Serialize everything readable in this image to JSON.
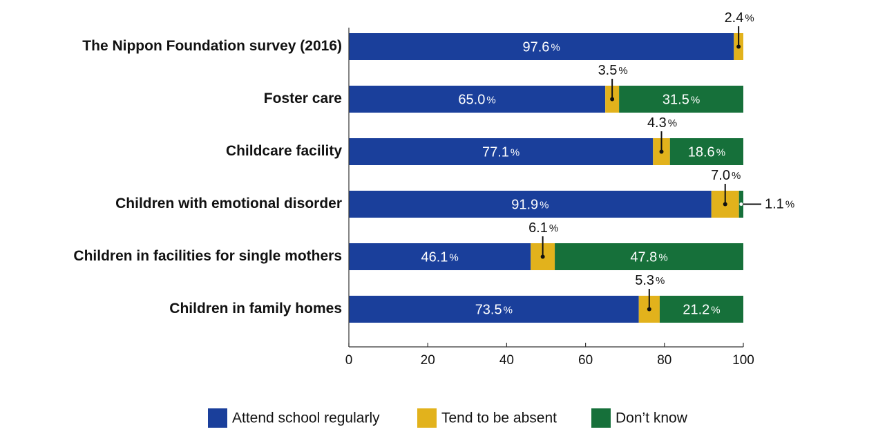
{
  "chart_data": {
    "type": "bar",
    "orientation": "horizontal",
    "stacked": true,
    "categories": [
      "The Nippon Foundation survey (2016)",
      "Foster care",
      "Childcare facility",
      "Children with emotional disorder",
      "Children in facilities for single mothers",
      "Children in family homes"
    ],
    "series": [
      {
        "name": "Attend school regularly",
        "color": "#1a3f9b",
        "values": [
          97.6,
          65.0,
          77.1,
          91.9,
          46.1,
          73.5
        ]
      },
      {
        "name": "Tend to be absent",
        "color": "#e2b21c",
        "values": [
          2.4,
          3.5,
          4.3,
          7.0,
          6.1,
          5.3
        ]
      },
      {
        "name": "Don’t know",
        "color": "#16703a",
        "values": [
          0,
          31.5,
          18.6,
          1.1,
          47.8,
          21.2
        ]
      }
    ],
    "value_labels": [
      [
        "97.6",
        "2.4",
        ""
      ],
      [
        "65.0",
        "3.5",
        "31.5"
      ],
      [
        "77.1",
        "4.3",
        "18.6"
      ],
      [
        "91.9",
        "7.0",
        "1.1"
      ],
      [
        "46.1",
        "6.1",
        "47.8"
      ],
      [
        "73.5",
        "5.3",
        "21.2"
      ]
    ],
    "unit_symbol": "%",
    "xlim": [
      0,
      100
    ],
    "xticks": [
      "0",
      "20",
      "40",
      "60",
      "80",
      "100"
    ],
    "title": "",
    "xlabel": "",
    "ylabel": "",
    "legend_position": "bottom"
  }
}
